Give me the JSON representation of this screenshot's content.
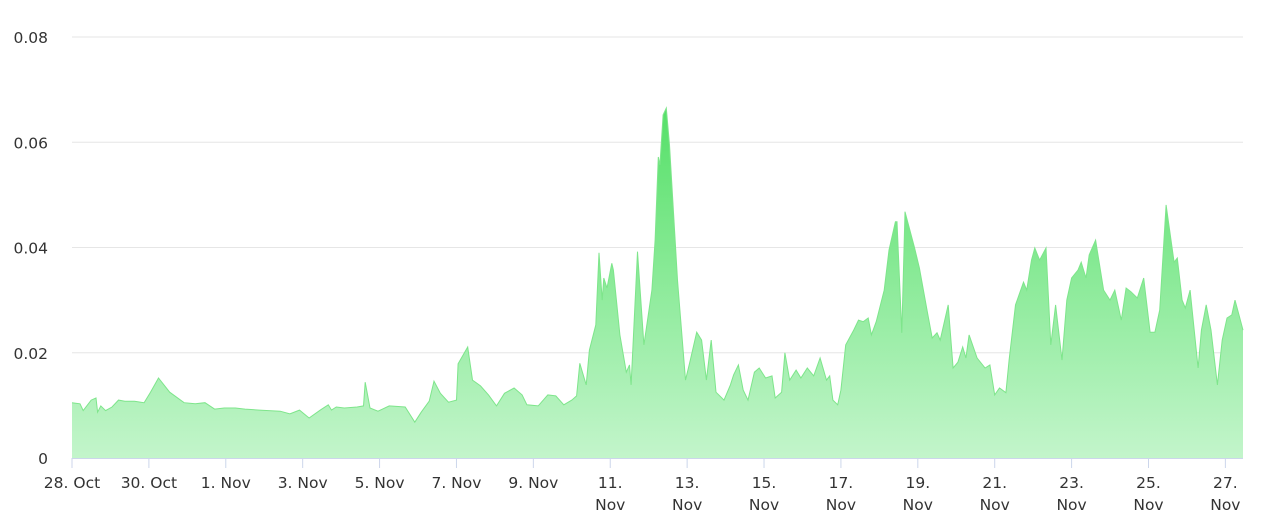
{
  "chart_data": {
    "type": "area",
    "title": "",
    "xlabel": "",
    "ylabel": "",
    "ylim": [
      0,
      0.08
    ],
    "yticks": [
      "0",
      "0.02",
      "0.04",
      "0.06",
      "0.08"
    ],
    "xlim": [
      "10-28 00",
      "11-27 11"
    ],
    "xticks": [
      {
        "at": "10-28 00",
        "label": [
          "28. Oct"
        ]
      },
      {
        "at": "10-30 00",
        "label": [
          "30. Oct"
        ]
      },
      {
        "at": "11-01 00",
        "label": [
          "1. Nov"
        ]
      },
      {
        "at": "11-03 00",
        "label": [
          "3. Nov"
        ]
      },
      {
        "at": "11-05 00",
        "label": [
          "5. Nov"
        ]
      },
      {
        "at": "11-07 00",
        "label": [
          "7. Nov"
        ]
      },
      {
        "at": "11-09 00",
        "label": [
          "9. Nov"
        ]
      },
      {
        "at": "11-11 00",
        "label": [
          "11.",
          "Nov"
        ]
      },
      {
        "at": "11-13 00",
        "label": [
          "13.",
          "Nov"
        ]
      },
      {
        "at": "11-15 00",
        "label": [
          "15.",
          "Nov"
        ]
      },
      {
        "at": "11-17 00",
        "label": [
          "17.",
          "Nov"
        ]
      },
      {
        "at": "11-19 00",
        "label": [
          "19.",
          "Nov"
        ]
      },
      {
        "at": "11-21 00",
        "label": [
          "21.",
          "Nov"
        ]
      },
      {
        "at": "11-23 00",
        "label": [
          "23.",
          "Nov"
        ]
      },
      {
        "at": "11-25 00",
        "label": [
          "25.",
          "Nov"
        ]
      },
      {
        "at": "11-27 00",
        "label": [
          "27.",
          "Nov"
        ]
      }
    ],
    "grid": true,
    "legend": "none",
    "colors": {
      "fill_top": "#55e068",
      "fill_bottom": "#c3f5cb",
      "line": "#7ee58b",
      "grid": "#e6e6e6",
      "axis": "#ccd6eb"
    },
    "series": [
      {
        "x": [
          "10-28 00",
          "10-28 05",
          "10-28 07",
          "10-28 12",
          "10-28 15",
          "10-28 16",
          "10-28 18",
          "10-28 21",
          "10-29 01",
          "10-29 05",
          "10-29 09",
          "10-29 15",
          "10-29 21",
          "10-30 01",
          "10-30 06",
          "10-30 13",
          "10-30 22",
          "10-31 05",
          "10-31 11",
          "10-31 17",
          "10-31 23",
          "11-01 06",
          "11-01 12",
          "11-01 21",
          "11-02 10",
          "11-02 16",
          "11-02 22",
          "11-03 04",
          "11-03 11",
          "11-03 16",
          "11-03 18",
          "11-03 21",
          "11-04 02",
          "11-04 10",
          "11-04 14",
          "11-04 15",
          "11-04 18",
          "11-04 23",
          "11-05 06",
          "11-05 16",
          "11-05 22",
          "11-06 02",
          "11-06 07",
          "11-06 10",
          "11-06 14",
          "11-06 19",
          "11-07 00",
          "11-07 01",
          "11-07 07",
          "11-07 10",
          "11-07 15",
          "11-07 20",
          "11-08 01",
          "11-08 06",
          "11-08 12",
          "11-08 17",
          "11-08 20",
          "11-09 03",
          "11-09 09",
          "11-09 14",
          "11-09 19",
          "11-10 00",
          "11-10 03",
          "11-10 05",
          "11-10 09",
          "11-10 11",
          "11-10 15",
          "11-10 17",
          "11-10 19",
          "11-10 20",
          "11-10 22",
          "11-11 01",
          "11-11 02",
          "11-11 06",
          "11-11 10",
          "11-11 12",
          "11-11 13",
          "11-11 17",
          "11-11 21",
          "11-12 02",
          "11-12 04",
          "11-12 06",
          "11-12 07",
          "11-12 09",
          "11-12 11",
          "11-12 13",
          "11-12 18",
          "11-12 23",
          "11-13 02",
          "11-13 06",
          "11-13 09",
          "11-13 12",
          "11-13 15",
          "11-13 18",
          "11-13 23",
          "11-14 03",
          "11-14 05",
          "11-14 08",
          "11-14 11",
          "11-14 14",
          "11-14 18",
          "11-14 21",
          "11-15 01",
          "11-15 05",
          "11-15 07",
          "11-15 11",
          "11-15 13",
          "11-15 16",
          "11-15 20",
          "11-15 23",
          "11-16 03",
          "11-16 07",
          "11-16 11",
          "11-16 15",
          "11-16 17",
          "11-16 19",
          "11-16 22",
          "11-17 00",
          "11-17 03",
          "11-17 08",
          "11-17 11",
          "11-17 14",
          "11-17 17",
          "11-17 19",
          "11-17 22",
          "11-18 03",
          "11-18 06",
          "11-18 10",
          "11-18 11",
          "11-18 14",
          "11-18 16",
          "11-18 22",
          "11-19 01",
          "11-19 06",
          "11-19 09",
          "11-19 12",
          "11-19 14",
          "11-19 19",
          "11-19 22",
          "11-20 01",
          "11-20 04",
          "11-20 06",
          "11-20 08",
          "11-20 13",
          "11-20 18",
          "11-20 21",
          "11-21 00",
          "11-21 03",
          "11-21 07",
          "11-21 09",
          "11-21 13",
          "11-21 18",
          "11-21 20",
          "11-21 23",
          "11-22 01",
          "11-22 04",
          "11-22 08",
          "11-22 11",
          "11-22 14",
          "11-22 18",
          "11-22 21",
          "11-23 00",
          "11-23 04",
          "11-23 06",
          "11-23 09",
          "11-23 11",
          "11-23 15",
          "11-23 20",
          "11-24 00",
          "11-24 03",
          "11-24 07",
          "11-24 10",
          "11-24 13",
          "11-24 17",
          "11-24 21",
          "11-25 01",
          "11-25 04",
          "11-25 07",
          "11-25 11",
          "11-25 16",
          "11-25 18",
          "11-25 21",
          "11-25 23",
          "11-26 02",
          "11-26 07",
          "11-26 09",
          "11-26 12",
          "11-26 15",
          "11-26 19",
          "11-26 22",
          "11-27 01",
          "11-27 04",
          "11-27 06",
          "11-27 09",
          "11-27 11"
        ],
        "y": [
          0.0105,
          0.0103,
          0.009,
          0.011,
          0.0114,
          0.0087,
          0.0099,
          0.009,
          0.0097,
          0.011,
          0.0108,
          0.0108,
          0.0105,
          0.0125,
          0.0152,
          0.0125,
          0.0105,
          0.0103,
          0.0105,
          0.0093,
          0.0095,
          0.0095,
          0.0093,
          0.0091,
          0.0089,
          0.0084,
          0.0091,
          0.0076,
          0.0091,
          0.0101,
          0.0091,
          0.0097,
          0.0095,
          0.0097,
          0.0099,
          0.0144,
          0.0095,
          0.0089,
          0.0099,
          0.0097,
          0.0068,
          0.0087,
          0.0108,
          0.0146,
          0.0123,
          0.0106,
          0.011,
          0.0179,
          0.0211,
          0.0148,
          0.0137,
          0.012,
          0.0099,
          0.0123,
          0.0133,
          0.012,
          0.0101,
          0.0099,
          0.012,
          0.0118,
          0.0101,
          0.011,
          0.0118,
          0.018,
          0.0139,
          0.0205,
          0.0253,
          0.039,
          0.03,
          0.0342,
          0.0323,
          0.037,
          0.0357,
          0.0234,
          0.0163,
          0.0177,
          0.0139,
          0.0392,
          0.0215,
          0.0319,
          0.0414,
          0.0572,
          0.0557,
          0.0652,
          0.0665,
          0.0595,
          0.0338,
          0.0148,
          0.0186,
          0.0239,
          0.0224,
          0.0148,
          0.0224,
          0.0125,
          0.011,
          0.0139,
          0.0158,
          0.0177,
          0.0129,
          0.011,
          0.0163,
          0.0171,
          0.0152,
          0.0156,
          0.0114,
          0.0125,
          0.02,
          0.0148,
          0.0167,
          0.0152,
          0.0171,
          0.0156,
          0.019,
          0.0148,
          0.0156,
          0.011,
          0.0101,
          0.0129,
          0.0215,
          0.0243,
          0.0262,
          0.0259,
          0.0266,
          0.0234,
          0.0259,
          0.0319,
          0.0395,
          0.0449,
          0.0449,
          0.0238,
          0.0468,
          0.0399,
          0.0361,
          0.0277,
          0.0228,
          0.0238,
          0.0224,
          0.0291,
          0.0171,
          0.0182,
          0.0211,
          0.019,
          0.0234,
          0.019,
          0.0171,
          0.0177,
          0.012,
          0.0133,
          0.0124,
          0.0186,
          0.0291,
          0.0334,
          0.0319,
          0.0376,
          0.0399,
          0.0376,
          0.0399,
          0.0215,
          0.0291,
          0.0186,
          0.03,
          0.0342,
          0.0357,
          0.0372,
          0.0342,
          0.0386,
          0.0414,
          0.0319,
          0.03,
          0.0319,
          0.0262,
          0.0323,
          0.0316,
          0.0304,
          0.0342,
          0.0239,
          0.0239,
          0.0281,
          0.0481,
          0.0372,
          0.038,
          0.03,
          0.0285,
          0.0319,
          0.0171,
          0.0243,
          0.0291,
          0.0243,
          0.0139,
          0.0224,
          0.0266,
          0.0272,
          0.03,
          0.0266,
          0.0243
        ]
      }
    ]
  }
}
